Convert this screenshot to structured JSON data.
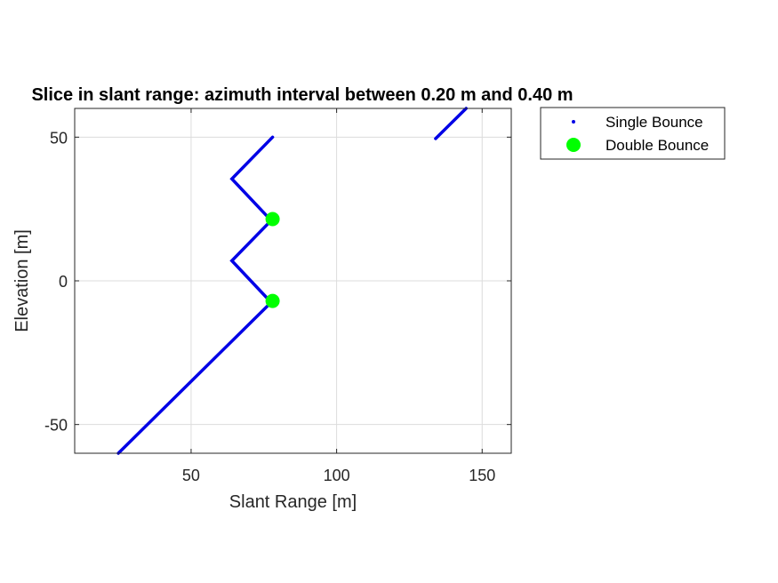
{
  "chart_data": {
    "type": "scatter",
    "title": "Slice in slant range: azimuth interval between 0.20 m and 0.40 m",
    "xlabel": "Slant Range [m]",
    "ylabel": "Elevation [m]",
    "xlim": [
      10,
      160
    ],
    "ylim": [
      -60,
      60
    ],
    "xticks": [
      50,
      100,
      150
    ],
    "yticks": [
      -50,
      0,
      50
    ],
    "xtick_labels": [
      "50",
      "100",
      "150"
    ],
    "ytick_labels": [
      "-50",
      "0",
      "50"
    ],
    "grid": true,
    "legend_position": "outside top-right",
    "colors": {
      "single": "#0000e6",
      "double": "#00ff00",
      "grid": "#dcdcdc",
      "axes": "#262626"
    },
    "series": [
      {
        "name": "Single Bounce",
        "marker": "dot",
        "segments": [
          [
            [
              25,
              -60
            ],
            [
              77.5,
              -7.5
            ],
            [
              64,
              7
            ],
            [
              77.5,
              21
            ],
            [
              64,
              35.5
            ],
            [
              78,
              50
            ]
          ],
          [
            [
              134,
              49.5
            ],
            [
              144.5,
              60
            ]
          ]
        ]
      },
      {
        "name": "Double Bounce",
        "marker": "large-circle",
        "points": [
          [
            78,
            21.5
          ],
          [
            78,
            -7
          ]
        ]
      }
    ]
  }
}
